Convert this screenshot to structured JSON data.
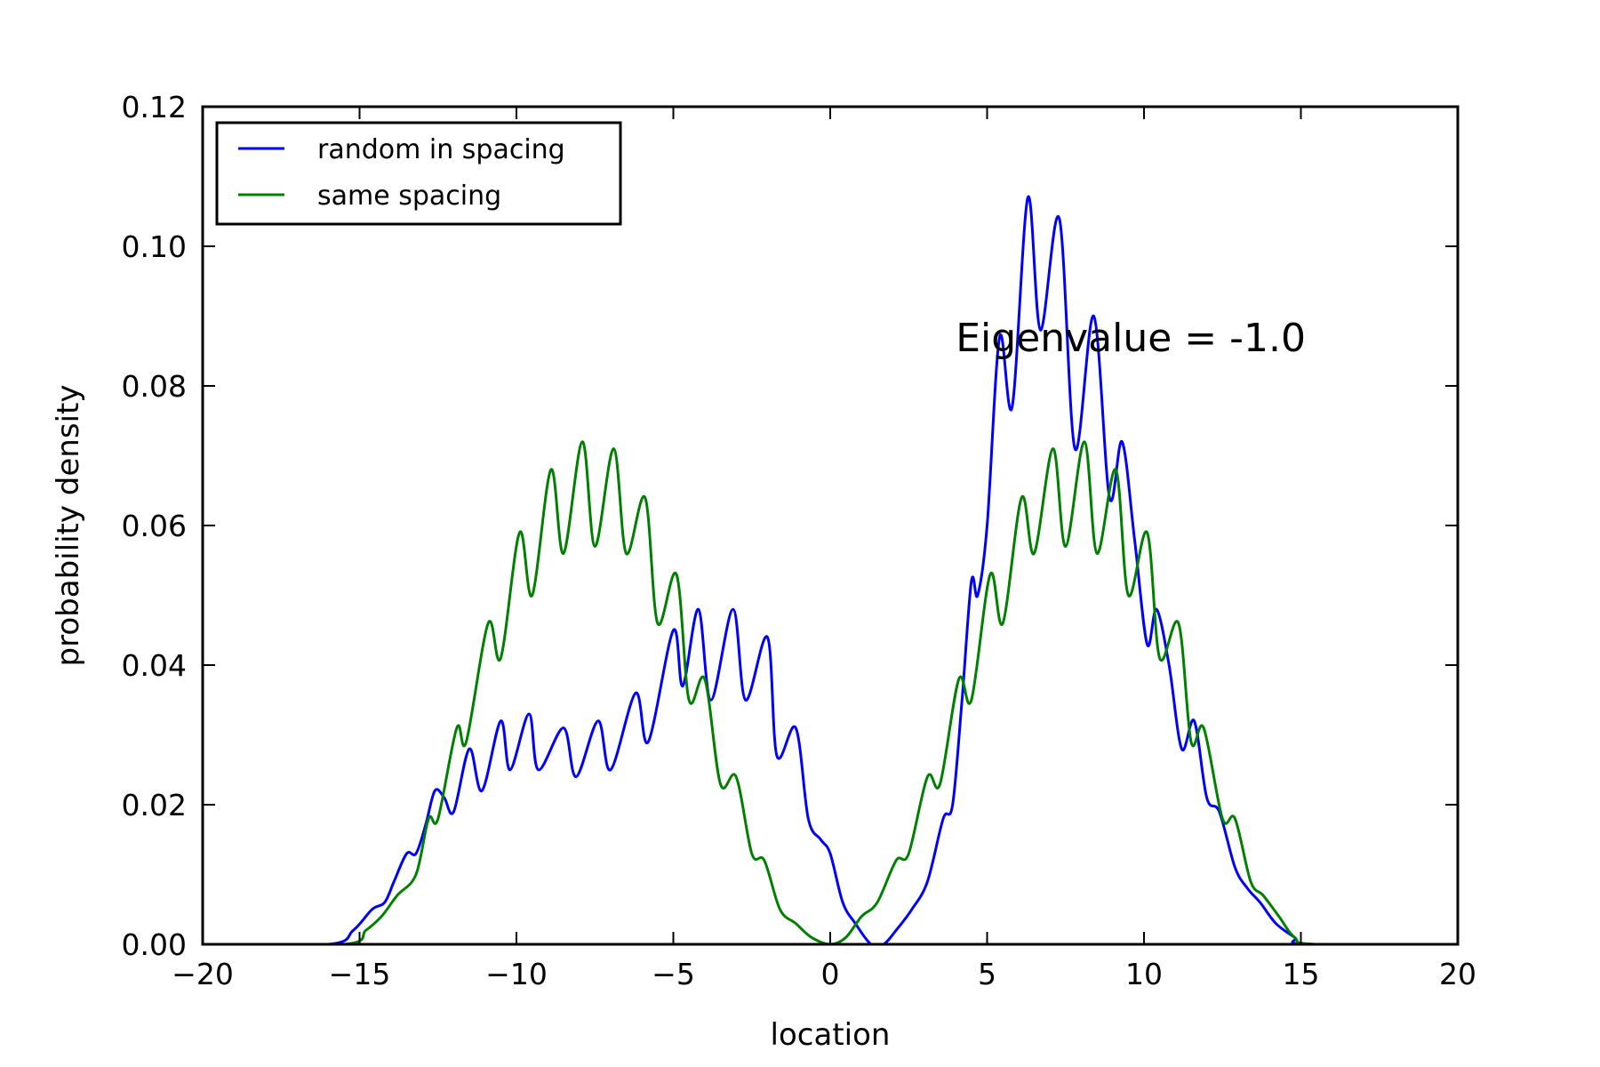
{
  "chart_data": {
    "type": "line",
    "title": "",
    "xlabel": "location",
    "ylabel": "probability density",
    "xlim": [
      -20,
      20
    ],
    "ylim": [
      0,
      0.12
    ],
    "xticks": [
      -20,
      -15,
      -10,
      -5,
      0,
      5,
      10,
      15,
      20
    ],
    "xtick_labels": [
      "−20",
      "−15",
      "−10",
      "−5",
      "0",
      "5",
      "10",
      "15",
      "20"
    ],
    "yticks": [
      0,
      0.02,
      0.04,
      0.06,
      0.08,
      0.1,
      0.12
    ],
    "ytick_labels": [
      "0.00",
      "0.02",
      "0.04",
      "0.06",
      "0.08",
      "0.10",
      "0.12"
    ],
    "grid": false,
    "legend_position": "top-left",
    "annotation": {
      "text": "Eigenvalue = -1.0",
      "x": 4,
      "y": 0.085
    },
    "series": [
      {
        "name": "random in spacing",
        "color": "#0000ff",
        "points": [
          [
            -20,
            0
          ],
          [
            -16,
            0
          ],
          [
            -15.2,
            0.002
          ],
          [
            -14.6,
            0.005
          ],
          [
            -14.2,
            0.006
          ],
          [
            -13.9,
            0.009
          ],
          [
            -13.5,
            0.013
          ],
          [
            -13.2,
            0.013
          ],
          [
            -12.9,
            0.017
          ],
          [
            -12.6,
            0.022
          ],
          [
            -12.3,
            0.021
          ],
          [
            -12.0,
            0.019
          ],
          [
            -11.5,
            0.028
          ],
          [
            -11.1,
            0.022
          ],
          [
            -10.5,
            0.032
          ],
          [
            -10.2,
            0.025
          ],
          [
            -9.6,
            0.033
          ],
          [
            -9.3,
            0.025
          ],
          [
            -8.5,
            0.031
          ],
          [
            -8.1,
            0.024
          ],
          [
            -7.4,
            0.032
          ],
          [
            -7.0,
            0.025
          ],
          [
            -6.2,
            0.036
          ],
          [
            -5.8,
            0.029
          ],
          [
            -5.0,
            0.045
          ],
          [
            -4.7,
            0.037
          ],
          [
            -4.2,
            0.048
          ],
          [
            -3.8,
            0.035
          ],
          [
            -3.1,
            0.048
          ],
          [
            -2.7,
            0.035
          ],
          [
            -2.0,
            0.044
          ],
          [
            -1.7,
            0.027
          ],
          [
            -1.1,
            0.031
          ],
          [
            -0.7,
            0.018
          ],
          [
            -0.3,
            0.015
          ],
          [
            0,
            0.013
          ],
          [
            0.4,
            0.006
          ],
          [
            0.8,
            0.003
          ],
          [
            1.3,
            0.0
          ],
          [
            1.7,
            0.0
          ],
          [
            2.1,
            0.002
          ],
          [
            2.6,
            0.005
          ],
          [
            3.1,
            0.009
          ],
          [
            3.6,
            0.018
          ],
          [
            3.9,
            0.02
          ],
          [
            4.2,
            0.035
          ],
          [
            4.5,
            0.052
          ],
          [
            4.7,
            0.05
          ],
          [
            5.0,
            0.06
          ],
          [
            5.4,
            0.087
          ],
          [
            5.8,
            0.077
          ],
          [
            6.3,
            0.107
          ],
          [
            6.7,
            0.088
          ],
          [
            7.3,
            0.104
          ],
          [
            7.8,
            0.071
          ],
          [
            8.4,
            0.09
          ],
          [
            8.9,
            0.064
          ],
          [
            9.3,
            0.072
          ],
          [
            9.7,
            0.058
          ],
          [
            10.1,
            0.043
          ],
          [
            10.4,
            0.048
          ],
          [
            10.8,
            0.04
          ],
          [
            11.2,
            0.028
          ],
          [
            11.6,
            0.032
          ],
          [
            12.0,
            0.021
          ],
          [
            12.4,
            0.019
          ],
          [
            12.9,
            0.011
          ],
          [
            13.3,
            0.008
          ],
          [
            13.7,
            0.006
          ],
          [
            14.2,
            0.003
          ],
          [
            14.8,
            0.001
          ],
          [
            15.2,
            0
          ],
          [
            20,
            0
          ]
        ]
      },
      {
        "name": "same spacing",
        "color": "#008000",
        "points": [
          [
            -20,
            0
          ],
          [
            -15.5,
            0
          ],
          [
            -14.8,
            0.002
          ],
          [
            -14.3,
            0.004
          ],
          [
            -13.8,
            0.007
          ],
          [
            -13.2,
            0.01
          ],
          [
            -12.8,
            0.018
          ],
          [
            -12.5,
            0.018
          ],
          [
            -11.9,
            0.031
          ],
          [
            -11.6,
            0.029
          ],
          [
            -10.9,
            0.046
          ],
          [
            -10.5,
            0.041
          ],
          [
            -9.9,
            0.059
          ],
          [
            -9.5,
            0.05
          ],
          [
            -8.9,
            0.068
          ],
          [
            -8.5,
            0.056
          ],
          [
            -7.9,
            0.072
          ],
          [
            -7.5,
            0.057
          ],
          [
            -6.9,
            0.071
          ],
          [
            -6.5,
            0.056
          ],
          [
            -5.9,
            0.064
          ],
          [
            -5.5,
            0.046
          ],
          [
            -4.9,
            0.053
          ],
          [
            -4.5,
            0.035
          ],
          [
            -4.0,
            0.038
          ],
          [
            -3.5,
            0.023
          ],
          [
            -3.0,
            0.024
          ],
          [
            -2.5,
            0.013
          ],
          [
            -2.1,
            0.012
          ],
          [
            -1.6,
            0.005
          ],
          [
            -1.1,
            0.003
          ],
          [
            -0.6,
            0.001
          ],
          [
            0,
            0
          ],
          [
            0.5,
            0.001
          ],
          [
            1.0,
            0.004
          ],
          [
            1.5,
            0.006
          ],
          [
            2.1,
            0.012
          ],
          [
            2.5,
            0.013
          ],
          [
            3.1,
            0.024
          ],
          [
            3.5,
            0.023
          ],
          [
            4.1,
            0.038
          ],
          [
            4.5,
            0.035
          ],
          [
            5.1,
            0.053
          ],
          [
            5.5,
            0.046
          ],
          [
            6.1,
            0.064
          ],
          [
            6.5,
            0.056
          ],
          [
            7.1,
            0.071
          ],
          [
            7.5,
            0.057
          ],
          [
            8.1,
            0.072
          ],
          [
            8.5,
            0.056
          ],
          [
            9.1,
            0.068
          ],
          [
            9.5,
            0.05
          ],
          [
            10.1,
            0.059
          ],
          [
            10.5,
            0.041
          ],
          [
            11.1,
            0.046
          ],
          [
            11.5,
            0.029
          ],
          [
            11.9,
            0.031
          ],
          [
            12.5,
            0.018
          ],
          [
            12.9,
            0.018
          ],
          [
            13.4,
            0.009
          ],
          [
            13.8,
            0.007
          ],
          [
            14.3,
            0.004
          ],
          [
            14.8,
            0.001
          ],
          [
            15.5,
            0
          ],
          [
            20,
            0
          ]
        ]
      }
    ]
  }
}
